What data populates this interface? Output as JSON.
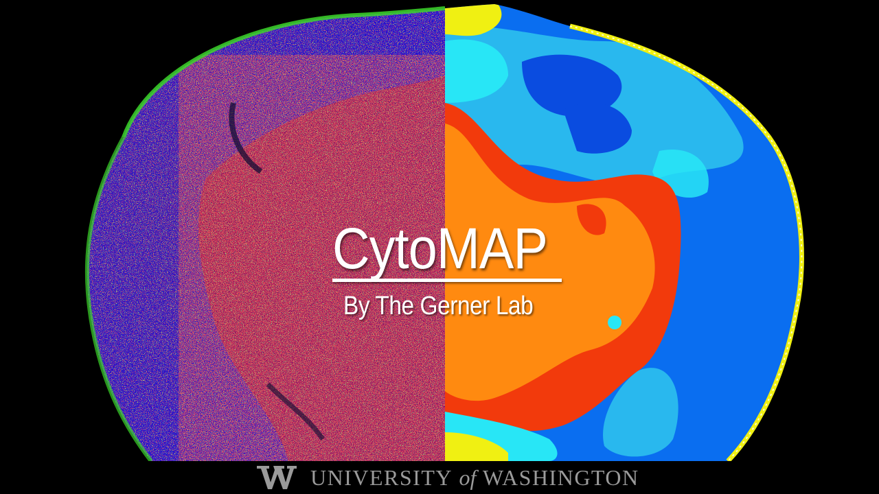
{
  "slide": {
    "title": "CytoMAP",
    "subtitle": "By The Gerner Lab"
  },
  "footer": {
    "logo_text_part1": "UNIVERSITY",
    "logo_text_of": "of",
    "logo_text_part2": "WASHINGTON"
  },
  "colors": {
    "background": "#000000",
    "microscopy_blue": "#2a14c8",
    "microscopy_red": "#e01818",
    "microscopy_green": "#3cd62a",
    "microscopy_yellow": "#f2e23a",
    "map_orange": "#ff8a10",
    "map_red": "#f23a0c",
    "map_blue": "#0a6ef0",
    "map_light_blue": "#29b8ee",
    "map_cyan": "#28e6f6",
    "map_yellow": "#f0f012",
    "text": "#ffffff",
    "logo_gray": "#9a9a9a"
  }
}
